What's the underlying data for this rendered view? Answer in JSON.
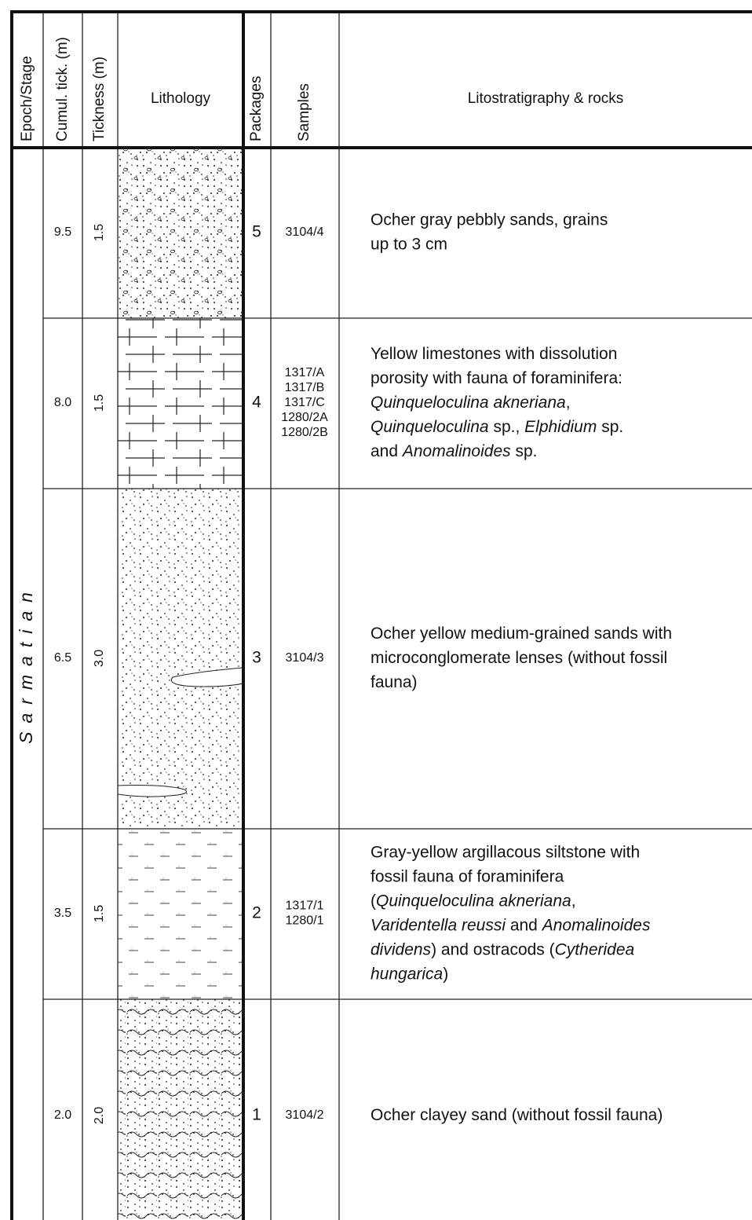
{
  "headers": [
    "Epoch/Stage",
    "Cumul. tick. (m)",
    "Tickness (m)",
    "Lithology",
    "Packages",
    "Samples",
    "Litostratigraphy & rocks"
  ],
  "epoch": "Sarmatian",
  "rows": [
    {
      "cumulative": "9.5",
      "thickness": "1.5",
      "package": "5",
      "samples": [
        "3104/4"
      ],
      "description": [
        [
          "Ocher gray pebbly sands, grains"
        ],
        [
          "up to 3 cm"
        ]
      ]
    },
    {
      "cumulative": "8.0",
      "thickness": "1.5",
      "package": "4",
      "samples": [
        "1317/A",
        "1317/B",
        "1317/C",
        "1280/2A",
        "1280/2B"
      ],
      "description": [
        [
          "Yellow limestones with dissolution"
        ],
        [
          "porosity with fauna of foraminifera:"
        ],
        [
          {
            "italic": "Quinqueloculina akneriana"
          },
          ","
        ],
        [
          {
            "italic": "Quinqueloculina"
          },
          " sp., ",
          {
            "italic": "Elphidium"
          },
          " sp."
        ],
        [
          "and ",
          {
            "italic": "Anomalinoides"
          },
          " sp."
        ]
      ]
    },
    {
      "cumulative": "6.5",
      "thickness": "3.0",
      "package": "3",
      "samples": [
        "3104/3"
      ],
      "description": [
        [
          "Ocher yellow medium-grained sands with"
        ],
        [
          "microconglomerate lenses (without fossil"
        ],
        [
          "fauna)"
        ]
      ]
    },
    {
      "cumulative": "3.5",
      "thickness": "1.5",
      "package": "2",
      "samples": [
        "1317/1",
        "1280/1"
      ],
      "description": [
        [
          "Gray-yellow argillacous siltstone with"
        ],
        [
          "fossil fauna of foraminifera"
        ],
        [
          "(",
          {
            "italic": "Quinqueloculina akneriana"
          },
          ","
        ],
        [
          {
            "italic": "Varidentella reussi"
          },
          " and ",
          {
            "italic": "Anomalinoides"
          }
        ],
        [
          {
            "italic": "dividens"
          },
          ") and ostracods (",
          {
            "italic": "Cytheridea"
          }
        ],
        [
          {
            "italic": "hungarica"
          },
          ")"
        ]
      ]
    },
    {
      "cumulative": "2.0",
      "thickness": "2.0",
      "package": "1",
      "samples": [
        "3104/2"
      ],
      "description": [
        [
          "Ocher clayey sand (without fossil fauna)"
        ]
      ]
    }
  ]
}
